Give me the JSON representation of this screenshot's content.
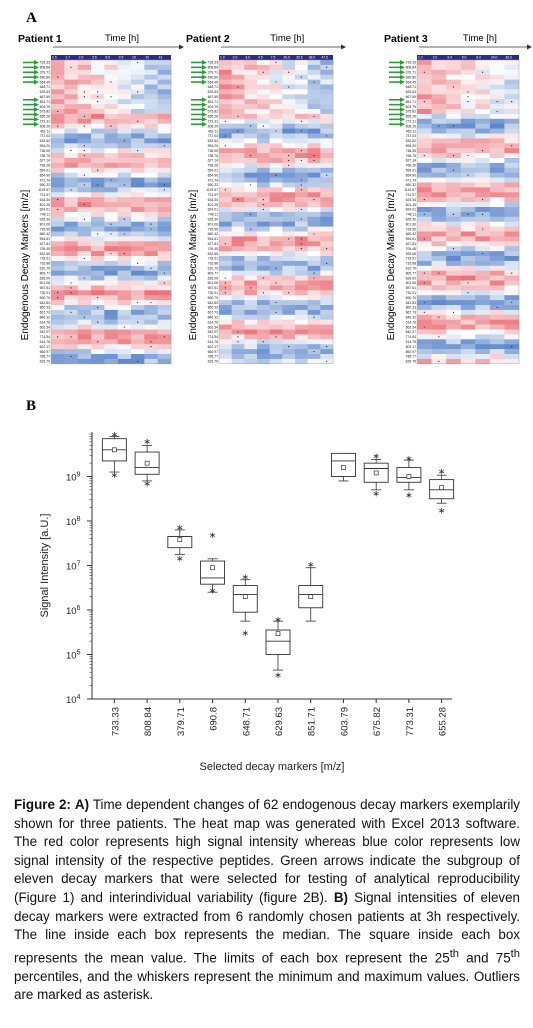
{
  "panel_a": {
    "letter": "A",
    "time_label": "Time [h]",
    "y_label": "Endogenous Decay Markers [m/z]",
    "patients": [
      {
        "name": "Patient 1",
        "times": [
          "0.5",
          "1.7",
          "2.6",
          "3.5",
          "6.5",
          "9.5",
          "15",
          "20",
          "41"
        ]
      },
      {
        "name": "Patient 2",
        "times": [
          "1.0",
          "2.0",
          "3.0",
          "4.5",
          "7.5",
          "20.0",
          "30.5",
          "38.0",
          "47.5"
        ]
      },
      {
        "name": "Patient 3",
        "times": [
          "1.2",
          "2.0",
          "3.4",
          "5.0",
          "8.0",
          "24.0",
          "36.0"
        ]
      }
    ],
    "row_labels": [
      "733.33",
      "808.84",
      "379.71",
      "690.80",
      "654.45",
      "648.71",
      "629.63",
      "667.69",
      "851.71",
      "603.79",
      "675.82",
      "655.28",
      "773.31",
      "608.29",
      "452.11",
      "737.03",
      "632.62",
      "594.20",
      "738.05",
      "796.75",
      "627.14",
      "768.26",
      "599.01",
      "854.90",
      "471.74",
      "690.32",
      "1119.57",
      "731.97",
      "633.34",
      "501.25",
      "824.01",
      "748.11",
      "625.30",
      "801.06",
      "725.95",
      "660.42",
      "594.61",
      "527.81",
      "705.45",
      "532.65",
      "718.51",
      "716.88",
      "610.79",
      "809.77",
      "628.00",
      "601.06",
      "557.61",
      "730.01",
      "690.70",
      "642.83",
      "860.33",
      "667.73",
      "846.32",
      "614.76",
      "662.34",
      "642.27",
      "774.54",
      "614.76",
      "602.17",
      "660.97",
      "785.77",
      "629.79"
    ],
    "highlighted_row_count": 11,
    "colors": {
      "high": "#e8606a",
      "low": "#4a78c4",
      "mid": "#ffffff",
      "arrow": "#2e9a3e"
    }
  },
  "panel_b": {
    "letter": "B"
  },
  "chart_data": {
    "type": "box",
    "ylabel": "Signal Intensity [a.U.]",
    "xlabel": "Selected decay markers [m/z]",
    "y_scale": "log",
    "ylim_exp": [
      4,
      10
    ],
    "y_tick_labels": [
      "10^4",
      "10^5",
      "10^6",
      "10^7",
      "10^8",
      "10^9"
    ],
    "categories": [
      "733.33",
      "808.84",
      "379.71",
      "690.8",
      "648.71",
      "629.63",
      "851.71",
      "603.79",
      "675.82",
      "773.31",
      "655.28"
    ],
    "series": [
      {
        "stats_log10": [
          {
            "min": 9.1,
            "q1": 9.35,
            "median": 9.6,
            "q3": 9.85,
            "max": 9.9,
            "mean": 9.6,
            "outliers": [
              9.95,
              9.05
            ]
          },
          {
            "min": 8.9,
            "q1": 9.05,
            "median": 9.2,
            "q3": 9.55,
            "max": 9.7,
            "mean": 9.3,
            "outliers": [
              9.8,
              8.85
            ]
          },
          {
            "min": 7.25,
            "q1": 7.4,
            "median": 7.65,
            "q3": 7.65,
            "max": 7.8,
            "mean": 7.58,
            "outliers": [
              7.87,
              7.17
            ]
          },
          {
            "min": 6.4,
            "q1": 6.58,
            "median": 6.72,
            "q3": 7.1,
            "max": 7.15,
            "mean": 6.95,
            "outliers": [
              7.7,
              6.45
            ]
          },
          {
            "min": 5.75,
            "q1": 5.95,
            "median": 6.35,
            "q3": 6.55,
            "max": 6.68,
            "mean": 6.3,
            "outliers": [
              6.75,
              5.5
            ]
          },
          {
            "min": 4.65,
            "q1": 5.0,
            "median": 5.3,
            "q3": 5.55,
            "max": 5.75,
            "mean": 5.47,
            "outliers": [
              5.8,
              4.55
            ]
          },
          {
            "min": 5.75,
            "q1": 6.05,
            "median": 6.35,
            "q3": 6.55,
            "max": 6.95,
            "mean": 6.3,
            "outliers": [
              7.03
            ]
          },
          {
            "min": 8.9,
            "q1": 9.0,
            "median": 9.35,
            "q3": 9.52,
            "max": 9.52,
            "mean": 9.2,
            "outliers": []
          },
          {
            "min": 8.7,
            "q1": 8.87,
            "median": 9.18,
            "q3": 9.3,
            "max": 9.38,
            "mean": 9.08,
            "outliers": [
              9.47,
              8.63
            ]
          },
          {
            "min": 8.7,
            "q1": 8.87,
            "median": 8.98,
            "q3": 9.2,
            "max": 9.37,
            "mean": 9.0,
            "outliers": [
              9.42,
              8.6
            ]
          },
          {
            "min": 8.4,
            "q1": 8.5,
            "median": 8.7,
            "q3": 8.93,
            "max": 9.03,
            "mean": 8.75,
            "outliers": [
              9.12,
              8.25
            ]
          }
        ]
      }
    ]
  },
  "caption": {
    "fig_label": "Figure 2:",
    "a_label": "A)",
    "a_text": "Time dependent changes of 62 endogenous decay markers exemplarily shown for three patients. The heat map was generated with Excel 2013 software. The red color represents high signal intensity whereas blue color represents low signal intensity of the respective peptides. Green arrows indicate the subgroup of eleven decay markers that were selected for testing of analytical reproducibility (Figure 1) and interindividual variability (figure 2B).",
    "b_label": "B)",
    "b_text_1": "Signal intensities of eleven decay markers were extracted from 6 randomly chosen patients at 3h respectively. The line inside each box represents the median. The square inside each box represents the mean value. The limits of each box represent the 25",
    "sup_th": "th",
    "b_text_2": "and 75",
    "b_text_3": "percentiles, and the whiskers represent the minimum and maximum values. Outliers are marked as asterisk."
  }
}
